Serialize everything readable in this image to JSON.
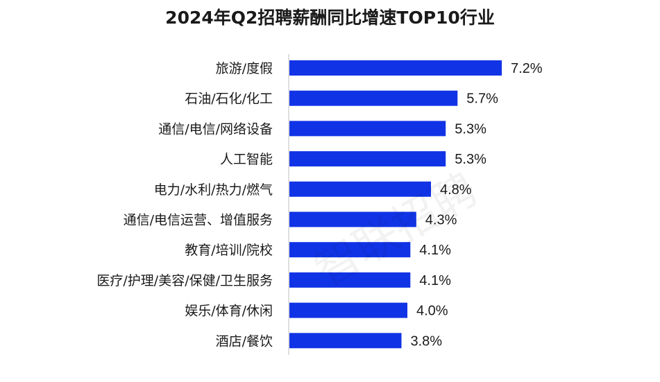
{
  "chart_data": {
    "type": "bar",
    "orientation": "horizontal",
    "title": "2024年Q2招聘薪酬同比增速TOP10行业",
    "categories": [
      "旅游/度假",
      "石油/石化/化工",
      "通信/电信/网络设备",
      "人工智能",
      "电力/水利/热力/燃气",
      "通信/电信运营、增值服务",
      "教育/培训/院校",
      "医疗/护理/美容/保健/卫生服务",
      "娱乐/体育/休闲",
      "酒店/餐饮"
    ],
    "values": [
      7.2,
      5.7,
      5.3,
      5.3,
      4.8,
      4.3,
      4.1,
      4.1,
      4.0,
      3.8
    ],
    "value_labels": [
      "7.2%",
      "5.7%",
      "5.3%",
      "5.3%",
      "4.8%",
      "4.3%",
      "4.1%",
      "4.1%",
      "4.0%",
      "3.8%"
    ],
    "unit": "%",
    "xlim": [
      0,
      7.2
    ],
    "grid": false,
    "legend": "none",
    "bar_color": "#1133e6"
  },
  "watermark": {
    "text": "智联招聘"
  }
}
